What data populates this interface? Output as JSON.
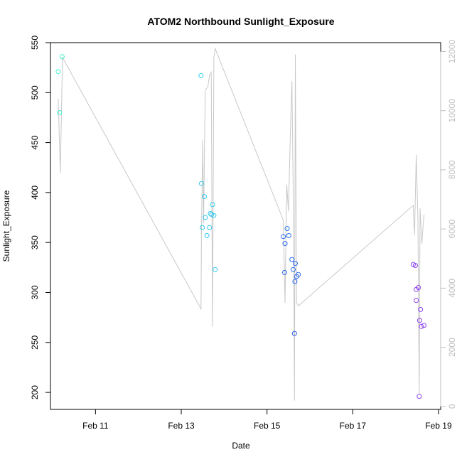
{
  "chart_data": {
    "type": "scatter",
    "title": "ATOM2 Northbound Sunlight_Exposure",
    "xlabel": "Date",
    "ylabel": "Sunlight_Exposure",
    "x_unit": "days (0 = Feb 10 00:00)",
    "xlim": [
      -0.05,
      9.05
    ],
    "ylim": [
      183,
      550
    ],
    "x_ticks": [
      {
        "value": 1,
        "label": "Feb 11"
      },
      {
        "value": 3,
        "label": "Feb 13"
      },
      {
        "value": 5,
        "label": "Feb 15"
      },
      {
        "value": 7,
        "label": "Feb 17"
      },
      {
        "value": 9,
        "label": "Feb 19"
      }
    ],
    "y_ticks": [
      200,
      250,
      300,
      350,
      400,
      450,
      500,
      550
    ],
    "y2lim": [
      -100,
      12300
    ],
    "y2_ticks": [
      0,
      2000,
      4000,
      6000,
      8000,
      10000,
      12000
    ],
    "scatter_points": [
      {
        "x": 0.13,
        "y": 521,
        "color": "#3ff0c8"
      },
      {
        "x": 0.16,
        "y": 480,
        "color": "#3ff0c8"
      },
      {
        "x": 0.22,
        "y": 536,
        "color": "#3ff0c8"
      },
      {
        "x": 3.46,
        "y": 517,
        "color": "#34d2ee"
      },
      {
        "x": 3.47,
        "y": 409,
        "color": "#34c8ee"
      },
      {
        "x": 3.49,
        "y": 365,
        "color": "#34c8ee"
      },
      {
        "x": 3.54,
        "y": 396,
        "color": "#34c8ee"
      },
      {
        "x": 3.56,
        "y": 375,
        "color": "#34c8ee"
      },
      {
        "x": 3.6,
        "y": 357,
        "color": "#34c8ee"
      },
      {
        "x": 3.66,
        "y": 365,
        "color": "#34c8ee"
      },
      {
        "x": 3.68,
        "y": 379,
        "color": "#34c8ee"
      },
      {
        "x": 3.71,
        "y": 378,
        "color": "#34c8ee"
      },
      {
        "x": 3.73,
        "y": 388,
        "color": "#34c8ee"
      },
      {
        "x": 3.76,
        "y": 377,
        "color": "#34c8ee"
      },
      {
        "x": 3.79,
        "y": 323,
        "color": "#34c8ee"
      },
      {
        "x": 5.38,
        "y": 356,
        "color": "#2a6af0"
      },
      {
        "x": 5.41,
        "y": 320,
        "color": "#2a6af0"
      },
      {
        "x": 5.42,
        "y": 349,
        "color": "#2a6af0"
      },
      {
        "x": 5.47,
        "y": 364,
        "color": "#2a78f0"
      },
      {
        "x": 5.51,
        "y": 357,
        "color": "#2a78f0"
      },
      {
        "x": 5.58,
        "y": 333,
        "color": "#2a6af0"
      },
      {
        "x": 5.61,
        "y": 323,
        "color": "#2a6af0"
      },
      {
        "x": 5.64,
        "y": 259,
        "color": "#2a5af0"
      },
      {
        "x": 5.65,
        "y": 311,
        "color": "#2a6af0"
      },
      {
        "x": 5.66,
        "y": 329,
        "color": "#2a6af0"
      },
      {
        "x": 5.69,
        "y": 316,
        "color": "#2a6af0"
      },
      {
        "x": 5.73,
        "y": 318,
        "color": "#2a6af0"
      },
      {
        "x": 8.41,
        "y": 328,
        "color": "#8a3ff0"
      },
      {
        "x": 8.46,
        "y": 327,
        "color": "#8a3ff0"
      },
      {
        "x": 8.48,
        "y": 292,
        "color": "#8a3ff0"
      },
      {
        "x": 8.48,
        "y": 303,
        "color": "#8a3ff0"
      },
      {
        "x": 8.53,
        "y": 305,
        "color": "#8a3ff0"
      },
      {
        "x": 8.56,
        "y": 272,
        "color": "#8a3ff0"
      },
      {
        "x": 8.58,
        "y": 283,
        "color": "#8a3ff0"
      },
      {
        "x": 8.55,
        "y": 196,
        "color": "#8a3ff0"
      },
      {
        "x": 8.6,
        "y": 266,
        "color": "#8a3ff0"
      },
      {
        "x": 8.66,
        "y": 267,
        "color": "#8a3ff0"
      }
    ],
    "secondary_line": {
      "axis": "right",
      "color": "#c8c8c8",
      "points": [
        [
          0.13,
          10400
        ],
        [
          0.18,
          7900
        ],
        [
          0.23,
          11800
        ],
        [
          3.46,
          3300
        ],
        [
          3.47,
          5800
        ],
        [
          3.5,
          9000
        ],
        [
          3.52,
          6200
        ],
        [
          3.56,
          10700
        ],
        [
          3.62,
          10800
        ],
        [
          3.66,
          11200
        ],
        [
          3.7,
          11300
        ],
        [
          3.73,
          2700
        ],
        [
          3.76,
          11800
        ],
        [
          3.79,
          12100
        ],
        [
          5.38,
          6300
        ],
        [
          5.42,
          3500
        ],
        [
          5.46,
          7500
        ],
        [
          5.5,
          6600
        ],
        [
          5.55,
          9500
        ],
        [
          5.58,
          11000
        ],
        [
          5.62,
          6000
        ],
        [
          5.64,
          200
        ],
        [
          5.66,
          11900
        ],
        [
          5.69,
          3500
        ],
        [
          5.73,
          3400
        ],
        [
          8.41,
          6800
        ],
        [
          8.44,
          5800
        ],
        [
          8.48,
          8500
        ],
        [
          8.52,
          6300
        ],
        [
          8.55,
          400
        ],
        [
          8.57,
          6700
        ],
        [
          8.61,
          5500
        ],
        [
          8.66,
          6500
        ]
      ]
    }
  }
}
